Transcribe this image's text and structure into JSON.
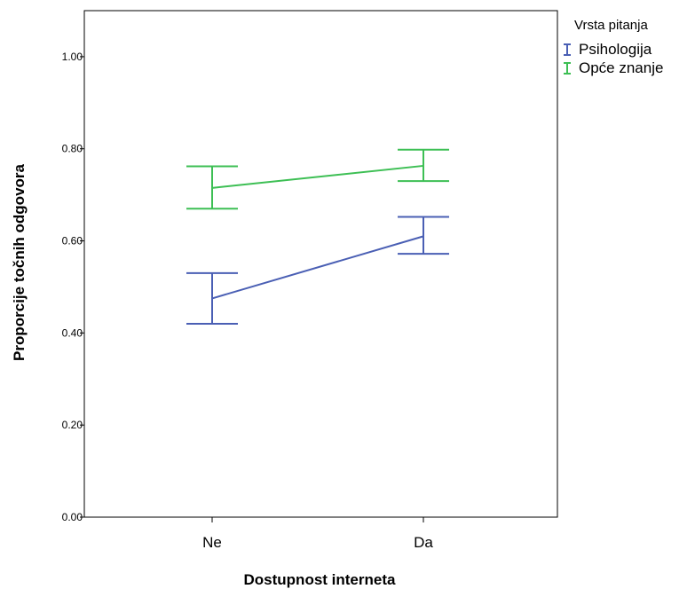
{
  "chart_data": {
    "type": "line",
    "subtype": "error-bar line plot",
    "xlabel": "Dostupnost interneta",
    "ylabel": "Proporcije točnih odgovora",
    "categories": [
      "Ne",
      "Da"
    ],
    "ylim": [
      0,
      1.1
    ],
    "yticks": [
      0.0,
      0.2,
      0.4,
      0.6,
      0.8,
      1.0
    ],
    "ytick_labels": [
      "0.00",
      "0.20",
      "0.40",
      "0.60",
      "0.80",
      "1.00"
    ],
    "grid": false,
    "legend_title": "Vrsta pitanja",
    "legend_position": "top-right, outside plot",
    "series": [
      {
        "name": "Psihologija",
        "color": "#4a5fb4",
        "values": [
          0.475,
          0.61
        ],
        "lower": [
          0.42,
          0.572
        ],
        "upper": [
          0.53,
          0.652
        ]
      },
      {
        "name": "Opće znanje",
        "color": "#3dbf54",
        "values": [
          0.715,
          0.763
        ],
        "lower": [
          0.67,
          0.73
        ],
        "upper": [
          0.762,
          0.798
        ]
      }
    ]
  }
}
